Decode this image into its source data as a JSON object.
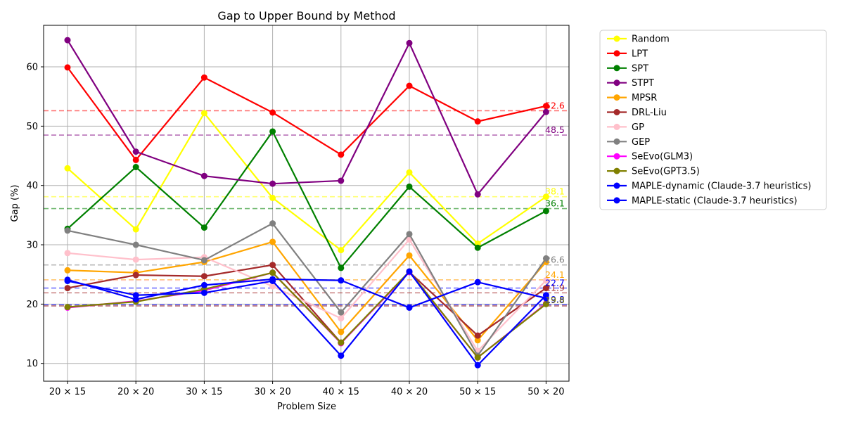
{
  "chart_data": {
    "type": "line",
    "title": "Gap to Upper Bound by Method",
    "xlabel": "Problem Size",
    "ylabel": "Gap (%)",
    "categories": [
      "20 × 15",
      "20 × 20",
      "30 × 15",
      "30 × 20",
      "40 × 15",
      "40 × 20",
      "50 × 15",
      "50 × 20"
    ],
    "ylim": [
      7,
      67
    ],
    "yticks": [
      10,
      20,
      30,
      40,
      50,
      60
    ],
    "grid": true,
    "legend_position": "outside-right",
    "series": [
      {
        "name": "Random",
        "color": "#ffff00",
        "values": [
          42.9,
          32.6,
          52.2,
          37.9,
          29.1,
          42.2,
          30.2,
          38.1
        ],
        "mean_label": "38.1",
        "mean": 38.1
      },
      {
        "name": "LPT",
        "color": "#ff0000",
        "values": [
          59.9,
          44.3,
          58.2,
          52.3,
          45.2,
          56.8,
          50.8,
          53.4
        ],
        "mean_label": "52.6",
        "mean": 52.6
      },
      {
        "name": "SPT",
        "color": "#008000",
        "values": [
          32.7,
          43.1,
          32.9,
          49.1,
          26.1,
          39.8,
          29.5,
          35.7
        ],
        "mean_label": "36.1",
        "mean": 36.1
      },
      {
        "name": "STPT",
        "color": "#800080",
        "values": [
          64.5,
          45.7,
          41.6,
          40.3,
          40.8,
          64.0,
          38.5,
          52.4
        ],
        "mean_label": "48.5",
        "mean": 48.5
      },
      {
        "name": "MPSR",
        "color": "#ffa500",
        "values": [
          25.7,
          25.3,
          27.1,
          30.5,
          15.3,
          28.2,
          13.9,
          27.1
        ],
        "mean_label": "24.1",
        "mean": 24.1
      },
      {
        "name": "DRL-Liu",
        "color": "#a52a2a",
        "values": [
          22.7,
          24.9,
          24.7,
          26.6,
          13.5,
          25.4,
          14.7,
          22.7
        ],
        "mean_label": "21.9",
        "mean": 21.9
      },
      {
        "name": "GP",
        "color": "#ffc0cb",
        "values": [
          28.6,
          27.5,
          27.9,
          23.0,
          17.6,
          30.9,
          12.1,
          24.0
        ],
        "mean_label": "",
        "mean": 24.0
      },
      {
        "name": "GEP",
        "color": "#808080",
        "values": [
          32.4,
          30.0,
          27.4,
          33.6,
          18.6,
          31.8,
          11.3,
          27.7
        ],
        "mean_label": "26.6",
        "mean": 26.6
      },
      {
        "name": "SeEvo(GLM3)",
        "color": "#ff00ff",
        "values": [
          19.4,
          20.5,
          22.3,
          25.3,
          13.4,
          25.4,
          11.0,
          20.1
        ],
        "mean_label": "",
        "mean": 19.7
      },
      {
        "name": "SeEvo(GPT3.5)",
        "color": "#808000",
        "values": [
          19.5,
          20.4,
          22.5,
          25.3,
          13.5,
          25.5,
          11.0,
          20.0
        ],
        "mean_label": "",
        "mean": 19.7
      },
      {
        "name": "MAPLE-dynamic (Claude-3.7 heuristics)",
        "color": "#0000ff",
        "values": [
          24.1,
          20.8,
          23.2,
          24.2,
          24.0,
          19.4,
          23.7,
          21.0
        ],
        "mean_label": "22.7",
        "mean": 22.7
      },
      {
        "name": "MAPLE-static (Claude-3.7 heuristics)",
        "color": "#0000ff",
        "values": [
          23.9,
          21.5,
          21.9,
          23.9,
          11.3,
          25.5,
          9.7,
          21.5
        ],
        "mean_label": "19.8",
        "mean": 19.9
      }
    ],
    "extra_mean_label": {
      "text": "19.8",
      "color": "#808000",
      "mean": 19.8
    }
  }
}
